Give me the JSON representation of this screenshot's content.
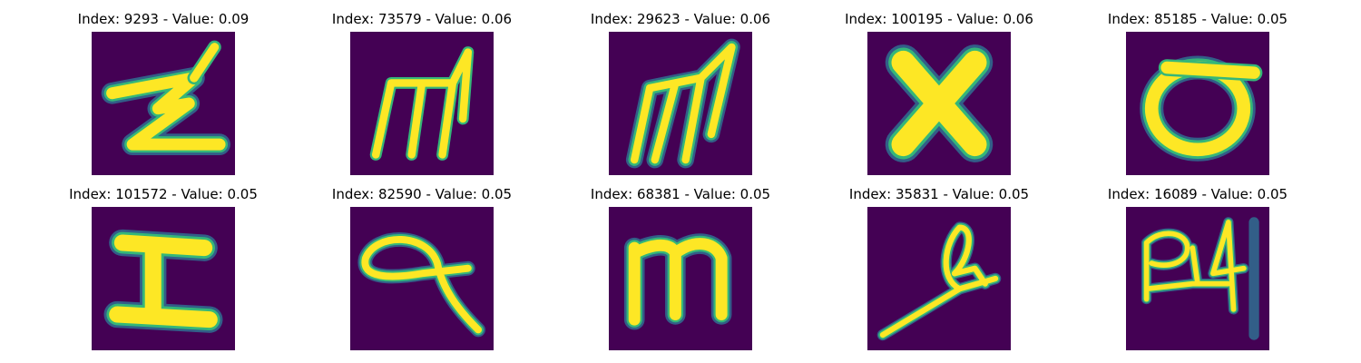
{
  "colors": {
    "background": "#440154",
    "stroke": "#fde725",
    "edge_mid": "#35b779",
    "edge_outer": "#31688e"
  },
  "panels": [
    {
      "title": "Index: 9293 - Value: 0.09",
      "glyph": "z-shape"
    },
    {
      "title": "Index: 73579 - Value: 0.06",
      "glyph": "m-shape"
    },
    {
      "title": "Index: 29623 - Value: 0.06",
      "glyph": "m-shape"
    },
    {
      "title": "Index: 100195 - Value: 0.06",
      "glyph": "x-shape"
    },
    {
      "title": "Index: 85185 - Value: 0.05",
      "glyph": "o-shape"
    },
    {
      "title": "Index: 101572 - Value: 0.05",
      "glyph": "i-shape"
    },
    {
      "title": "Index: 82590 - Value: 0.05",
      "glyph": "q-shape"
    },
    {
      "title": "Index: 68381 - Value: 0.05",
      "glyph": "m-shape"
    },
    {
      "title": "Index: 35831 - Value: 0.05",
      "glyph": "loop-shape"
    },
    {
      "title": "Index: 16089 - Value: 0.05",
      "glyph": "scribble-shape"
    }
  ]
}
